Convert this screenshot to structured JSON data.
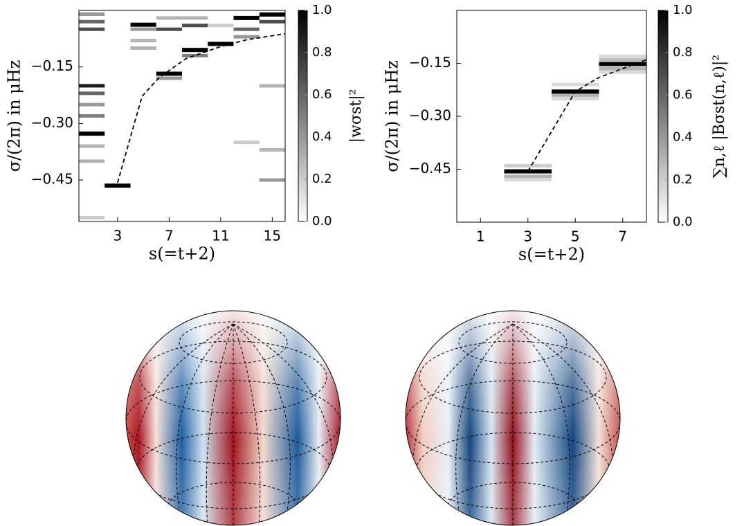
{
  "chart_data": [
    {
      "type": "heatmap",
      "xlabel": "s(=t+2)",
      "ylabel": "σ/(2π) in μHz",
      "xlim": [
        0,
        16
      ],
      "xticks": [
        3,
        7,
        11,
        15
      ],
      "ylim": [
        -0.56,
        0
      ],
      "yticks": [
        {
          "value": -0.15,
          "label": "−0.15"
        },
        {
          "value": -0.3,
          "label": "−0.30"
        },
        {
          "value": -0.45,
          "label": "−0.45"
        }
      ],
      "cells": [
        {
          "s": 1,
          "sigma": -0.01,
          "value": 0.4
        },
        {
          "s": 1,
          "sigma": -0.03,
          "value": 0.6
        },
        {
          "s": 1,
          "sigma": -0.05,
          "value": 0.7
        },
        {
          "s": 1,
          "sigma": -0.2,
          "value": 0.9
        },
        {
          "s": 1,
          "sigma": -0.22,
          "value": 0.6
        },
        {
          "s": 1,
          "sigma": -0.25,
          "value": 0.4
        },
        {
          "s": 1,
          "sigma": -0.28,
          "value": 0.5
        },
        {
          "s": 1,
          "sigma": -0.327,
          "value": 1.0
        },
        {
          "s": 1,
          "sigma": -0.36,
          "value": 0.3
        },
        {
          "s": 1,
          "sigma": -0.4,
          "value": 0.3
        },
        {
          "s": 1,
          "sigma": -0.55,
          "value": 0.2
        },
        {
          "s": 3,
          "sigma": -0.465,
          "value": 1.0
        },
        {
          "s": 5,
          "sigma": -0.038,
          "value": 1.0
        },
        {
          "s": 5,
          "sigma": -0.05,
          "value": 0.4
        },
        {
          "s": 5,
          "sigma": -0.08,
          "value": 0.3
        },
        {
          "s": 5,
          "sigma": -0.1,
          "value": 0.3
        },
        {
          "s": 7,
          "sigma": -0.168,
          "value": 1.0
        },
        {
          "s": 7,
          "sigma": -0.05,
          "value": 0.7
        },
        {
          "s": 7,
          "sigma": -0.02,
          "value": 0.3
        },
        {
          "s": 7,
          "sigma": -0.18,
          "value": 0.4
        },
        {
          "s": 9,
          "sigma": -0.105,
          "value": 1.0
        },
        {
          "s": 9,
          "sigma": -0.04,
          "value": 0.7
        },
        {
          "s": 9,
          "sigma": -0.12,
          "value": 0.5
        },
        {
          "s": 9,
          "sigma": -0.02,
          "value": 0.3
        },
        {
          "s": 11,
          "sigma": -0.089,
          "value": 1.0
        },
        {
          "s": 11,
          "sigma": -0.04,
          "value": 0.2
        },
        {
          "s": 13,
          "sigma": -0.02,
          "value": 1.0
        },
        {
          "s": 13,
          "sigma": -0.05,
          "value": 0.6
        },
        {
          "s": 13,
          "sigma": -0.07,
          "value": 0.4
        },
        {
          "s": 13,
          "sigma": -0.35,
          "value": 0.2
        },
        {
          "s": 15,
          "sigma": -0.011,
          "value": 1.0
        },
        {
          "s": 15,
          "sigma": -0.03,
          "value": 0.7
        },
        {
          "s": 15,
          "sigma": -0.45,
          "value": 0.4
        },
        {
          "s": 15,
          "sigma": -0.2,
          "value": 0.3
        },
        {
          "s": 15,
          "sigma": -0.37,
          "value": 0.3
        }
      ],
      "line": {
        "x": [
          3,
          4.9,
          6.2,
          8.3,
          11,
          13,
          16
        ],
        "y": [
          -0.457,
          -0.228,
          -0.179,
          -0.128,
          -0.096,
          -0.078,
          -0.062
        ]
      },
      "colorbar": {
        "label": "|wσst|²",
        "lim": [
          0,
          1
        ],
        "ticks": [
          {
            "value": 0,
            "label": "0.0"
          },
          0.2,
          0.4,
          0.6,
          0.8,
          {
            "value": 1,
            "label": "1.0"
          }
        ]
      }
    },
    {
      "type": "heatmap",
      "xlabel": "s(=t+2)",
      "ylabel": "σ/(2π) in μHz",
      "xlim": [
        0,
        8
      ],
      "xticks": [
        1,
        3,
        5,
        7
      ],
      "ylim": [
        -0.6,
        0
      ],
      "yticks": [
        {
          "value": -0.15,
          "label": "−0.15"
        },
        {
          "value": -0.3,
          "label": "−0.30"
        },
        {
          "value": -0.45,
          "label": "−0.45"
        }
      ],
      "cells": [
        {
          "s": 3,
          "sigma": -0.44,
          "value": 0.2
        },
        {
          "s": 3,
          "sigma": -0.47,
          "value": 0.3
        },
        {
          "s": 3,
          "sigma": -0.48,
          "value": 0.15
        },
        {
          "s": 3,
          "sigma": -0.456,
          "value": 1.0
        },
        {
          "s": 5,
          "sigma": -0.21,
          "value": 0.15
        },
        {
          "s": 5,
          "sigma": -0.24,
          "value": 0.3
        },
        {
          "s": 5,
          "sigma": -0.25,
          "value": 0.15
        },
        {
          "s": 5,
          "sigma": -0.23,
          "value": 1.0
        },
        {
          "s": 7,
          "sigma": -0.13,
          "value": 0.15
        },
        {
          "s": 7,
          "sigma": -0.14,
          "value": 0.25
        },
        {
          "s": 7,
          "sigma": -0.165,
          "value": 0.3
        },
        {
          "s": 7,
          "sigma": -0.175,
          "value": 0.15
        },
        {
          "s": 7,
          "sigma": -0.152,
          "value": 1.0
        }
      ],
      "line": {
        "x": [
          3,
          5,
          6,
          7,
          8
        ],
        "y": [
          -0.456,
          -0.23,
          -0.19,
          -0.165,
          -0.14
        ]
      },
      "colorbar": {
        "label": "∑n,ℓ |Bσst(n,ℓ)|²",
        "lim": [
          0,
          1
        ],
        "ticks": [
          {
            "value": 0,
            "label": "0.0"
          },
          0.2,
          0.4,
          0.6,
          0.8,
          {
            "value": 1,
            "label": "1.0"
          }
        ]
      }
    }
  ]
}
